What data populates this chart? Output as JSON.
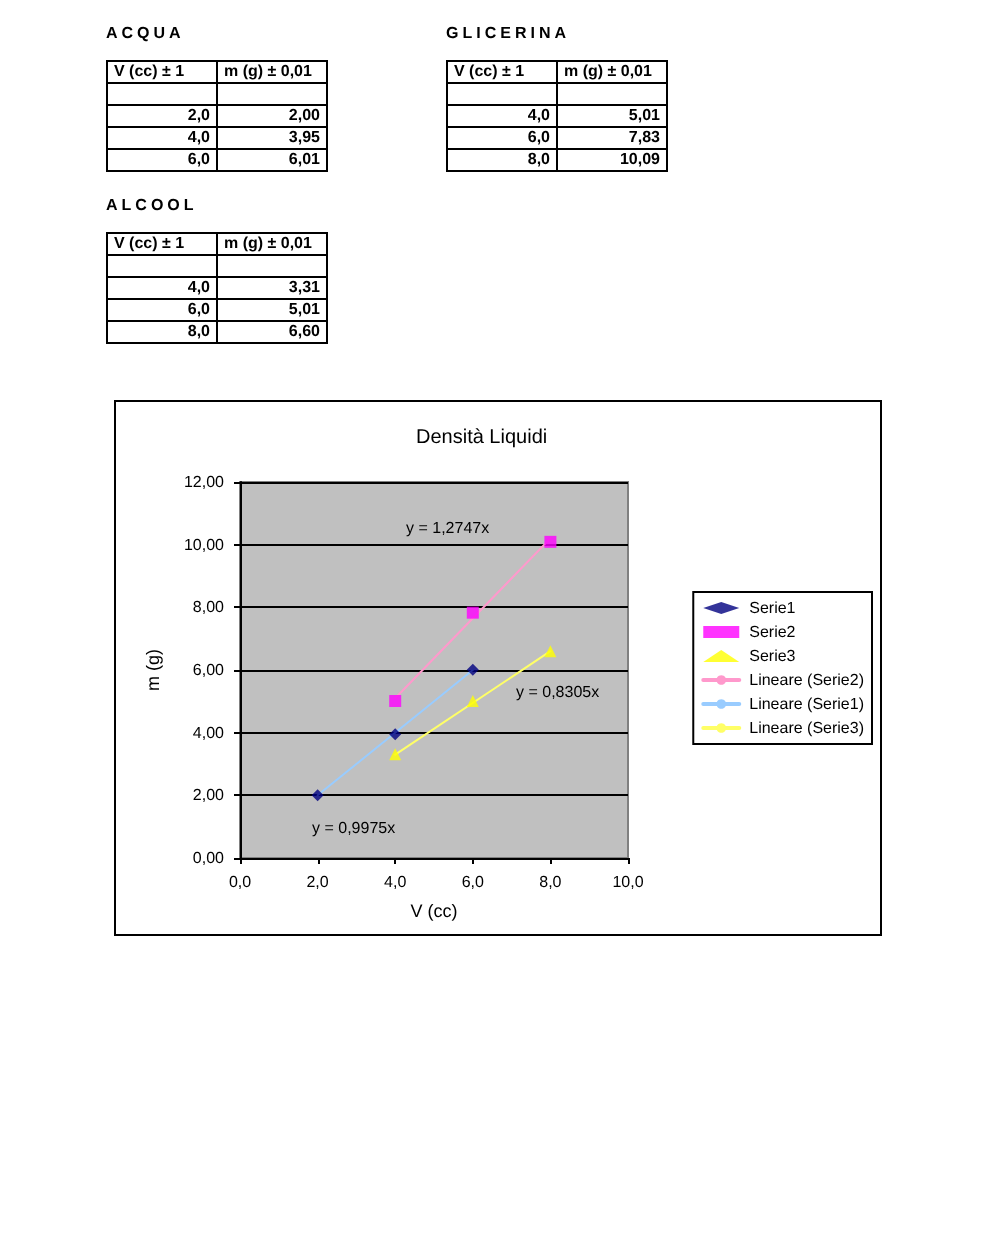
{
  "chart_data": [
    {
      "type": "other",
      "title": "ACQUA",
      "annotations": [
        "V (cc) ± 1",
        "m (g) ± 0,01",
        "2,0",
        "2,00",
        "4,0",
        "3,95",
        "6,0",
        "6,01"
      ]
    },
    {
      "type": "other",
      "title": "GLICERINA",
      "annotations": [
        "V (cc) ± 1",
        "m (g) ± 0,01",
        "4,0",
        "5,01",
        "6,0",
        "7,83",
        "8,0",
        "10,09"
      ]
    },
    {
      "type": "other",
      "title": "ALCOOL",
      "annotations": [
        "V (cc) ± 1",
        "m (g) ± 0,01",
        "4,0",
        "3,31",
        "6,0",
        "5,01",
        "8,0",
        "6,60"
      ]
    },
    {
      "type": "scatter",
      "title": "Densità Liquidi",
      "xlabel": "V (cc)",
      "ylabel": "m (g)",
      "xlim": [
        0,
        10
      ],
      "xticks": [
        {
          "value": 0,
          "label": "0,0"
        },
        {
          "value": 2,
          "label": "2,0"
        },
        {
          "value": 4,
          "label": "4,0"
        },
        {
          "value": 6,
          "label": "6,0"
        },
        {
          "value": 8,
          "label": "8,0"
        },
        {
          "value": 10,
          "label": "10,0"
        }
      ],
      "ylim": [
        0,
        12
      ],
      "yticks": [
        {
          "value": 0,
          "label": "0,00"
        },
        {
          "value": 2,
          "label": "2,00"
        },
        {
          "value": 4,
          "label": "4,00"
        },
        {
          "value": 6,
          "label": "6,00"
        },
        {
          "value": 8,
          "label": "8,00"
        },
        {
          "value": 10,
          "label": "10,00"
        },
        {
          "value": 12,
          "label": "12,00"
        }
      ],
      "grid": "y",
      "legend": "right",
      "series": [
        {
          "name": "Serie1",
          "color": "#000080",
          "marker": "diamond",
          "x": [
            2,
            4,
            6
          ],
          "values": [
            2.0,
            3.95,
            6.01
          ]
        },
        {
          "name": "Serie2",
          "color": "#ff00ff",
          "marker": "square",
          "x": [
            4,
            6,
            8
          ],
          "values": [
            5.01,
            7.83,
            10.09
          ]
        },
        {
          "name": "Serie3",
          "color": "#ffff00",
          "marker": "triangle",
          "x": [
            4,
            6,
            8
          ],
          "values": [
            3.31,
            5.01,
            6.6
          ]
        },
        {
          "name": "Lineare (Serie2)",
          "type": "line",
          "color": "#ff99cc",
          "marker": "none",
          "x": [
            4,
            8
          ],
          "values": [
            5.1,
            10.2
          ]
        },
        {
          "name": "Lineare (Serie1)",
          "type": "line",
          "color": "#99ccff",
          "marker": "none",
          "x": [
            2,
            6
          ],
          "values": [
            2.0,
            6.0
          ]
        },
        {
          "name": "Lineare (Serie3)",
          "type": "line",
          "color": "#ffff66",
          "marker": "none",
          "x": [
            4,
            8
          ],
          "values": [
            3.3,
            6.6
          ]
        }
      ],
      "annotations": [
        "y = 1,2747x",
        "y = 0,8305x",
        "y = 0,9975x"
      ]
    }
  ]
}
